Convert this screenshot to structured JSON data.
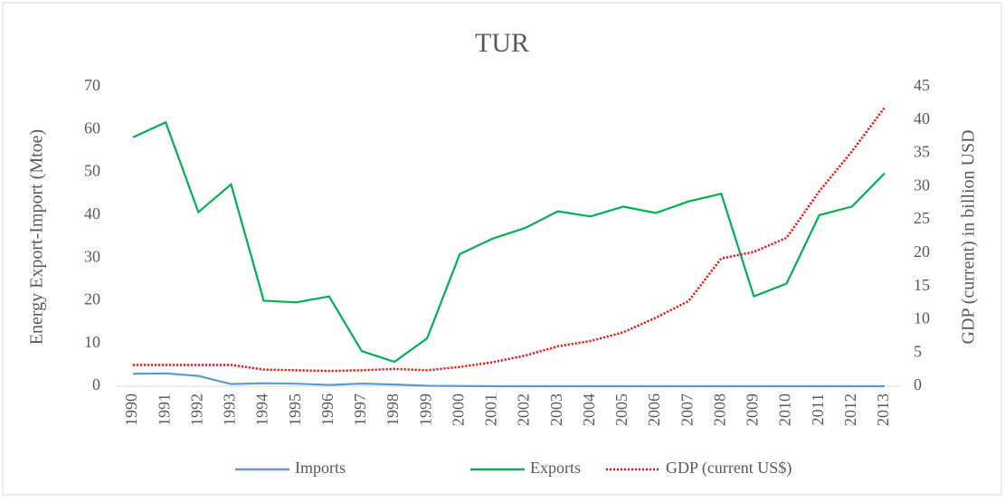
{
  "chart_data": {
    "type": "line",
    "title": "TUR",
    "y_label": "Energy Export-Import (Mtoe)",
    "y2_label": "GDP (current) in billion USD",
    "categories": [
      "1990",
      "1991",
      "1992",
      "1993",
      "1994",
      "1995",
      "1996",
      "1997",
      "1998",
      "1999",
      "2000",
      "2001",
      "2002",
      "2003",
      "2004",
      "2005",
      "2006",
      "2007",
      "2008",
      "2009",
      "2010",
      "2011",
      "2012",
      "2013"
    ],
    "series": [
      {
        "name": "Imports",
        "color": "#5b9bd5",
        "values": [
          2.9,
          3.0,
          2.4,
          0.5,
          0.7,
          0.6,
          0.3,
          0.6,
          0.4,
          0.1,
          0.05,
          0,
          0,
          0,
          0,
          0,
          0,
          0,
          0,
          0,
          0,
          0,
          0,
          0
        ]
      },
      {
        "name": "Exports",
        "color": "#00b050",
        "values": [
          58.2,
          61.7,
          40.7,
          47.2,
          20.0,
          19.6,
          21.0,
          8.2,
          5.7,
          11.2,
          30.9,
          34.5,
          37.0,
          40.9,
          39.7,
          42.0,
          40.5,
          43.2,
          45.0,
          21.0,
          24.0,
          40.0,
          42.0,
          49.8
        ]
      },
      {
        "name": "GDP (current US$)",
        "color": "#ff0000",
        "dash": "dotted",
        "axis": "y2",
        "values": [
          3.2,
          3.2,
          3.2,
          3.2,
          2.5,
          2.4,
          2.3,
          2.4,
          2.6,
          2.4,
          2.9,
          3.6,
          4.6,
          6.0,
          6.8,
          8.1,
          10.3,
          12.8,
          19.2,
          20.2,
          22.3,
          29.3,
          35.3,
          41.9
        ]
      }
    ],
    "ylim": [
      0,
      70
    ],
    "yticks": [
      0,
      10,
      20,
      30,
      40,
      50,
      60,
      70
    ],
    "y2lim": [
      0,
      45
    ],
    "y2ticks": [
      0,
      5,
      10,
      15,
      20,
      25,
      30,
      35,
      40,
      45
    ],
    "grid": false,
    "legend": "bottom"
  }
}
